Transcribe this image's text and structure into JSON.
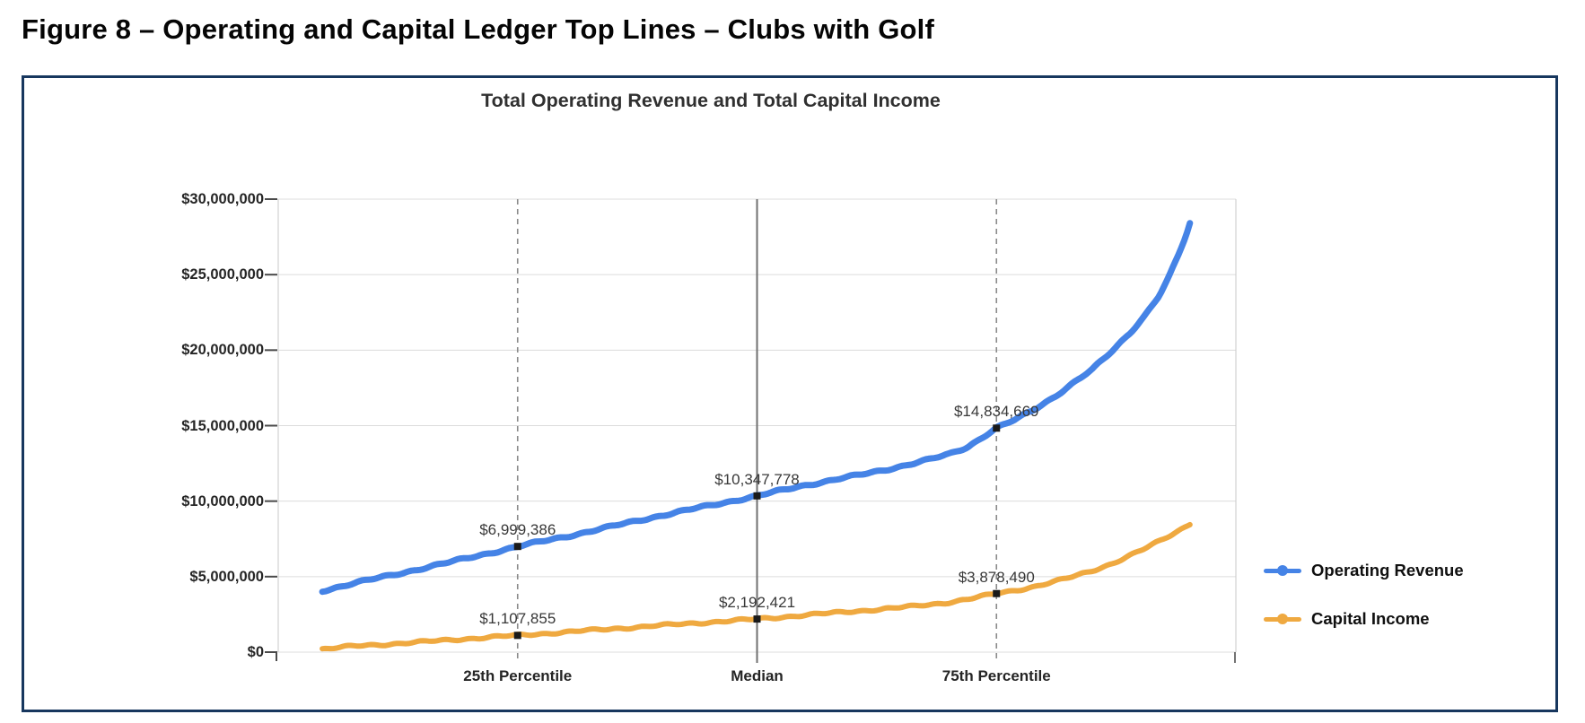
{
  "figure_title": "Figure 8 – Operating and Capital Ledger Top Lines – Clubs with Golf",
  "chart_data": {
    "type": "line",
    "title": "Total Operating Revenue and Total Capital Income",
    "x_axis": {
      "unit": "percentile rank of clubs",
      "range": [
        0,
        100
      ],
      "labels": [
        "25th Percentile",
        "Median",
        "75th Percentile"
      ]
    },
    "ylim": [
      0,
      30000000
    ],
    "y_ticks": [
      "$0",
      "$5,000,000",
      "$10,000,000",
      "$15,000,000",
      "$20,000,000",
      "$25,000,000",
      "$30,000,000"
    ],
    "y_tick_values": [
      0,
      5000000,
      10000000,
      15000000,
      20000000,
      25000000,
      30000000
    ],
    "grid": true,
    "legend_position": "right",
    "reference_lines": [
      {
        "label": "25th Percentile",
        "x": 25,
        "style": "dashed"
      },
      {
        "label": "Median",
        "x": 50,
        "style": "solid"
      },
      {
        "label": "75th Percentile",
        "x": 75,
        "style": "dashed"
      }
    ],
    "series": [
      {
        "name": "Operating Revenue",
        "color": "#4583e6",
        "x": [
          4.6,
          8,
          12,
          16,
          20,
          25,
          30,
          35,
          40,
          45,
          50,
          55,
          60,
          62,
          65,
          68,
          70,
          72,
          75,
          77,
          79,
          81,
          83,
          85,
          87,
          89,
          90.5,
          92,
          93,
          94,
          94.8,
          95.3
        ],
        "values": [
          4050000,
          4600000,
          5100000,
          5700000,
          6250000,
          6999386,
          7650000,
          8350000,
          9050000,
          9700000,
          10347778,
          11050000,
          11650000,
          11900000,
          12300000,
          12750000,
          13100000,
          13600000,
          14834669,
          15400000,
          16100000,
          16900000,
          17800000,
          18700000,
          19900000,
          21200000,
          22300000,
          23600000,
          24800000,
          26300000,
          27600000,
          28600000
        ],
        "labeled_points": [
          {
            "x": 25,
            "value": 6999386,
            "label": "$6,999,386"
          },
          {
            "x": 50,
            "value": 10347778,
            "label": "$10,347,778"
          },
          {
            "x": 75,
            "value": 14834669,
            "label": "$14,834,669"
          }
        ]
      },
      {
        "name": "Capital Income",
        "color": "#efa940",
        "x": [
          4.6,
          8,
          12,
          16,
          20,
          25,
          30,
          35,
          40,
          45,
          50,
          55,
          60,
          62,
          65,
          68,
          70,
          72,
          75,
          77,
          79,
          81,
          83,
          85,
          87,
          89,
          90.5,
          92,
          93,
          94,
          94.8,
          95.3
        ],
        "values": [
          200000,
          400000,
          550000,
          720000,
          900000,
          1107855,
          1330000,
          1550000,
          1770000,
          1980000,
          2192421,
          2450000,
          2700000,
          2800000,
          2950000,
          3150000,
          3300000,
          3500000,
          3878490,
          4100000,
          4350000,
          4650000,
          5000000,
          5400000,
          5850000,
          6400000,
          6850000,
          7350000,
          7700000,
          8050000,
          8350000,
          8550000
        ],
        "labeled_points": [
          {
            "x": 25,
            "value": 1107855,
            "label": "$1,107,855"
          },
          {
            "x": 50,
            "value": 2192421,
            "label": "$2,192,421"
          },
          {
            "x": 75,
            "value": 3878490,
            "label": "$3,878,490"
          }
        ]
      }
    ],
    "styles": {
      "border_color": "#17375e",
      "grid_color": "#dcdcdc",
      "axis_color": "#c9c9c9",
      "tick_color": "#4a4a4a",
      "reference_dashed_color": "#8a8a8a",
      "reference_solid_color": "#707070",
      "marker_color": "#1a1a1a",
      "data_label_color": "#383838"
    }
  }
}
